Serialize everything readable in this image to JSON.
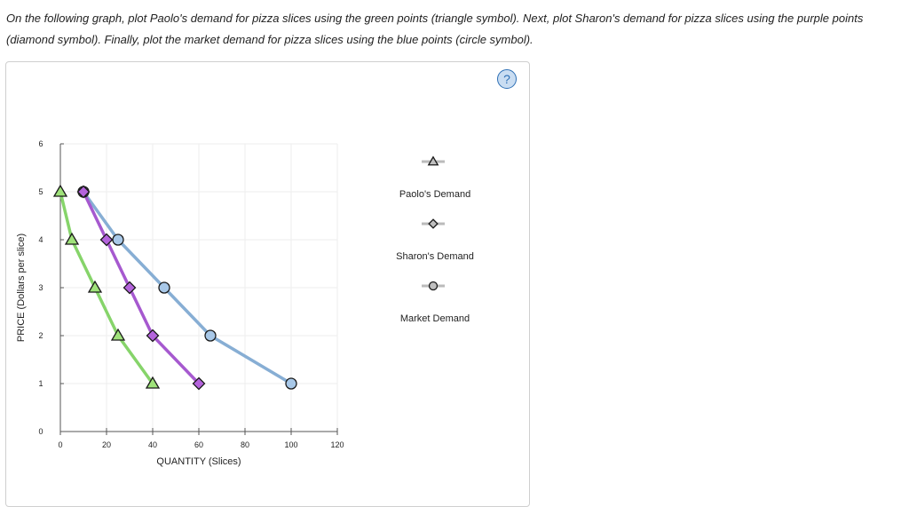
{
  "instructions": "On the following graph, plot Paolo's demand for pizza slices using the green points (triangle symbol). Next, plot Sharon's demand for pizza slices using the purple points (diamond symbol). Finally, plot the market demand for pizza slices using the blue points (circle symbol).",
  "help": {
    "label": "?",
    "icon": "question-icon"
  },
  "chart_data": {
    "type": "line",
    "xlabel": "QUANTITY (Slices)",
    "ylabel": "PRICE (Dollars per slice)",
    "xlim": [
      0,
      120
    ],
    "ylim": [
      0,
      6
    ],
    "xticks": [
      "0",
      "20",
      "40",
      "60",
      "80",
      "100",
      "120"
    ],
    "yticks": [
      "0",
      "1",
      "2",
      "3",
      "4",
      "5",
      "6"
    ],
    "grid": true,
    "legend_position": "right",
    "series": [
      {
        "name": "Paolo's Demand",
        "marker": "triangle",
        "color": "#86d46a",
        "fill": "#9fe27a",
        "points": [
          [
            0,
            5
          ],
          [
            5,
            4
          ],
          [
            15,
            3
          ],
          [
            25,
            2
          ],
          [
            40,
            1
          ]
        ]
      },
      {
        "name": "Sharon's Demand",
        "marker": "diamond",
        "color": "#a659cf",
        "fill": "#b463dc",
        "points": [
          [
            10,
            5
          ],
          [
            20,
            4
          ],
          [
            30,
            3
          ],
          [
            40,
            2
          ],
          [
            60,
            1
          ]
        ]
      },
      {
        "name": "Market Demand",
        "marker": "circle",
        "color": "#87aed4",
        "fill": "#a8c8e8",
        "points": [
          [
            10,
            5
          ],
          [
            25,
            4
          ],
          [
            45,
            3
          ],
          [
            65,
            2
          ],
          [
            100,
            1
          ]
        ]
      }
    ]
  }
}
